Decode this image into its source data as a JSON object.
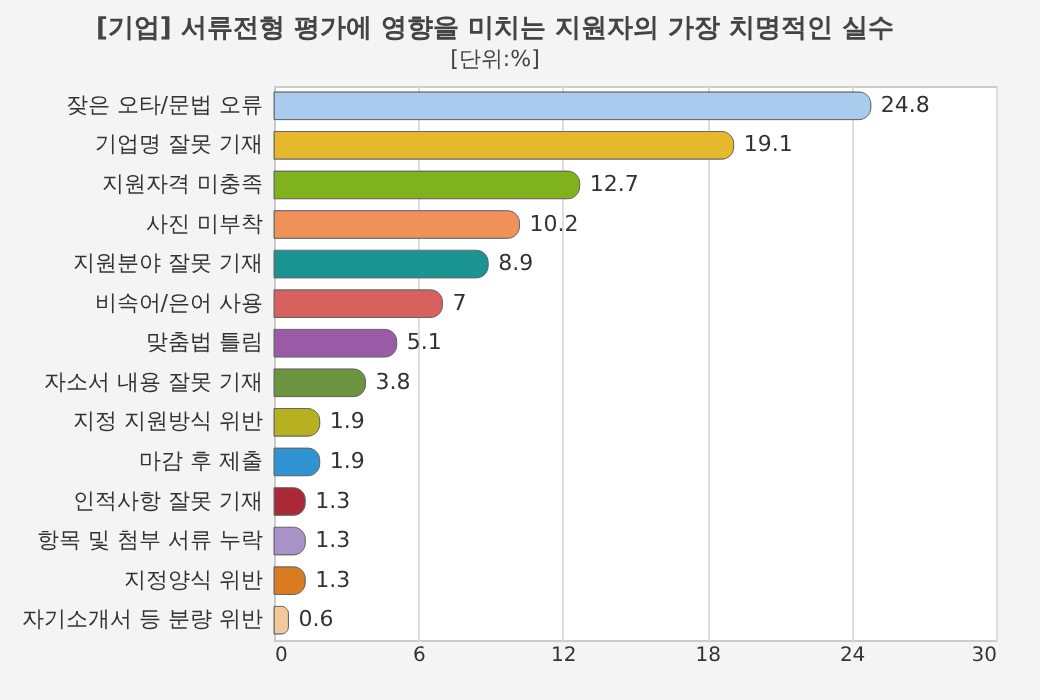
{
  "chart_data": {
    "type": "bar",
    "orientation": "horizontal",
    "title": "[기업] 서류전형 평가에 영향을 미치는 지원자의 가장 치명적인 실수",
    "subtitle": "[단위:%]",
    "categories": [
      "잦은 오타/문법 오류",
      "기업명 잘못 기재",
      "지원자격 미충족",
      "사진 미부착",
      "지원분야 잘못 기재",
      "비속어/은어 사용",
      "맞춤법 틀림",
      "자소서 내용 잘못 기재",
      "지정 지원방식 위반",
      "마감 후 제출",
      "인적사항 잘못 기재",
      "항목 및 첨부 서류 누락",
      "지정양식 위반",
      "자기소개서 등 분량 위반"
    ],
    "values": [
      24.8,
      19.1,
      12.7,
      10.2,
      8.9,
      7,
      5.1,
      3.8,
      1.9,
      1.9,
      1.3,
      1.3,
      1.3,
      0.6
    ],
    "colors": [
      "#a9cbee",
      "#e6b92c",
      "#7fb21c",
      "#f0915a",
      "#1a9493",
      "#d8605f",
      "#9b5aa6",
      "#6a9440",
      "#b7b020",
      "#2f93d4",
      "#a92a36",
      "#a893c9",
      "#d97c20",
      "#f1c99a"
    ],
    "xlim": [
      0,
      30
    ],
    "xticks": [
      0,
      6,
      12,
      18,
      24,
      30
    ],
    "grid": "x",
    "data_labels": true
  }
}
